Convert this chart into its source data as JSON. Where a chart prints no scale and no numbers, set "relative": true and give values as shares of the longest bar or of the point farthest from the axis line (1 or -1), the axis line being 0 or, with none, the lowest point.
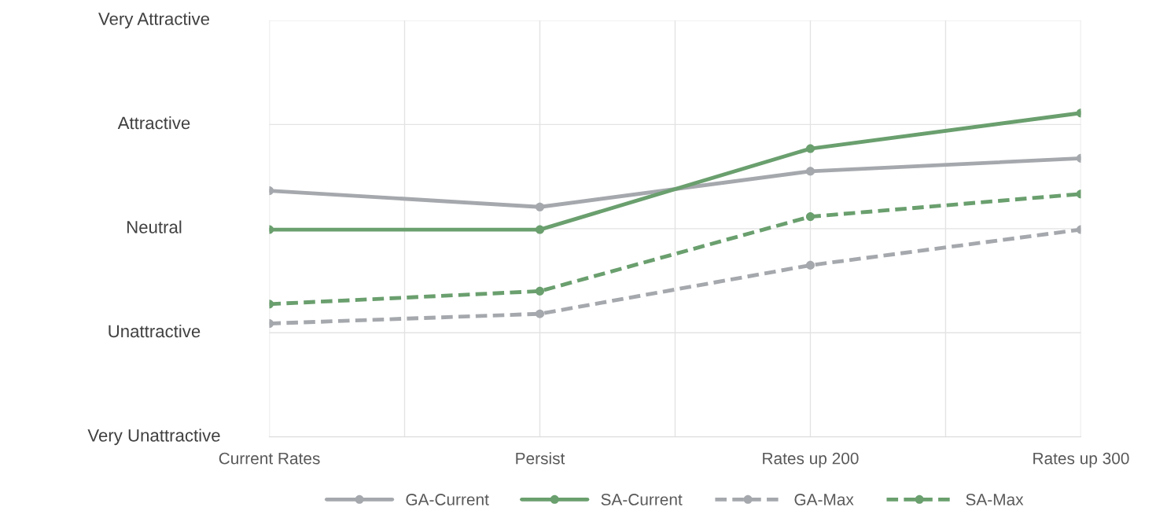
{
  "chart_data": {
    "type": "line",
    "relative": true,
    "categories": [
      "Current Rates",
      "Persist",
      "Rates up 200",
      "Rates up 300"
    ],
    "series": [
      {
        "name": "GA-Current",
        "color": "#a5a8ad",
        "line_style": "solid",
        "values": [
          0.76,
          0.71,
          0.82,
          0.86
        ]
      },
      {
        "name": "SA-Current",
        "color": "#6a9f6e",
        "line_style": "solid",
        "values": [
          0.64,
          0.64,
          0.89,
          1.0
        ]
      },
      {
        "name": "GA-Max",
        "color": "#a5a8ad",
        "line_style": "dashed",
        "values": [
          0.35,
          0.38,
          0.53,
          0.64
        ]
      },
      {
        "name": "SA-Max",
        "color": "#6a9f6e",
        "line_style": "dashed",
        "values": [
          0.41,
          0.45,
          0.68,
          0.75
        ]
      }
    ],
    "annotations": [
      "Very Unattractive",
      "Unattractive",
      "Neutral",
      "Attractive",
      "Very Attractive"
    ],
    "marker": "circle",
    "grid": true,
    "legend": "bottom"
  }
}
